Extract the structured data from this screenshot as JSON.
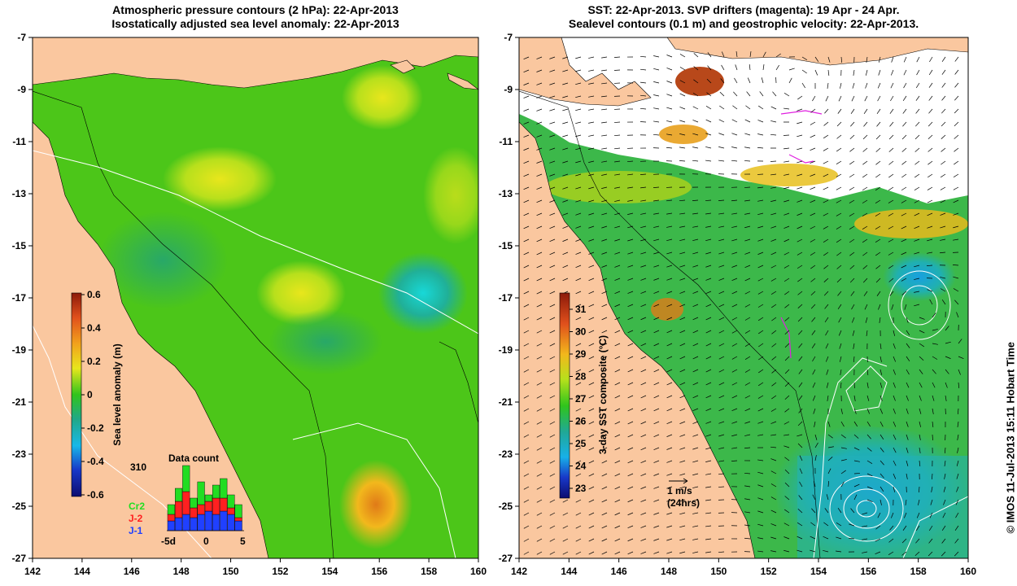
{
  "left_panel": {
    "title_line1": "Atmospheric pressure contours (2 hPa): 22-Apr-2013",
    "title_line2": "Isostatically adjusted sea level anomaly: 22-Apr-2013",
    "colorbar": {
      "label": "Sea level anomaly (m)",
      "ticks": [
        "0.6",
        "0.4",
        "0.2",
        "0",
        "-0.2",
        "-0.4",
        "-0.6"
      ]
    },
    "data_count": {
      "title": "Data count",
      "max_label": "310",
      "x_ticks": [
        "-5d",
        "0",
        "5"
      ],
      "legend": [
        {
          "label": "Cr2",
          "color": "#22dd22"
        },
        {
          "label": "J-2",
          "color": "#ff2020"
        },
        {
          "label": "J-1",
          "color": "#2040ff"
        }
      ],
      "bars": [
        {
          "blue": 0.15,
          "red": 0.1,
          "green": 0.15
        },
        {
          "blue": 0.2,
          "red": 0.25,
          "green": 0.2
        },
        {
          "blue": 0.25,
          "red": 0.35,
          "green": 0.4
        },
        {
          "blue": 0.2,
          "red": 0.15,
          "green": 0.15
        },
        {
          "blue": 0.25,
          "red": 0.15,
          "green": 0.35
        },
        {
          "blue": 0.3,
          "red": 0.15,
          "green": 0.1
        },
        {
          "blue": 0.25,
          "red": 0.25,
          "green": 0.2
        },
        {
          "blue": 0.3,
          "red": 0.2,
          "green": 0.3
        },
        {
          "blue": 0.25,
          "red": 0.1,
          "green": 0.2
        },
        {
          "blue": 0.15,
          "red": 0.05,
          "green": 0.2
        }
      ]
    }
  },
  "right_panel": {
    "title_line1": "SST: 22-Apr-2013. SVP drifters (magenta): 19 Apr - 24 Apr.",
    "title_line2": "Sealevel contours (0.1 m) and geostrophic velocity: 22-Apr-2013.",
    "colorbar": {
      "label": "3-day SST composite (°C)",
      "ticks": [
        "31",
        "30",
        "29",
        "28",
        "27",
        "26",
        "25",
        "24",
        "23"
      ]
    },
    "velocity_scale": {
      "line1": "1 m/s",
      "line2": "(24hrs)"
    }
  },
  "axes": {
    "x_ticks": [
      "142",
      "144",
      "146",
      "148",
      "150",
      "152",
      "154",
      "156",
      "158",
      "160"
    ],
    "y_ticks": [
      "-7",
      "-9",
      "-11",
      "-13",
      "-15",
      "-17",
      "-19",
      "-21",
      "-23",
      "-25",
      "-27"
    ]
  },
  "credit": "© IMOS 11-Jul-2013 15:11 Hobart Time",
  "colors": {
    "land": "#fac79f",
    "sla_base": "#4cc619",
    "sst_base": "#3cb84a",
    "cloud": "#ffffff"
  }
}
